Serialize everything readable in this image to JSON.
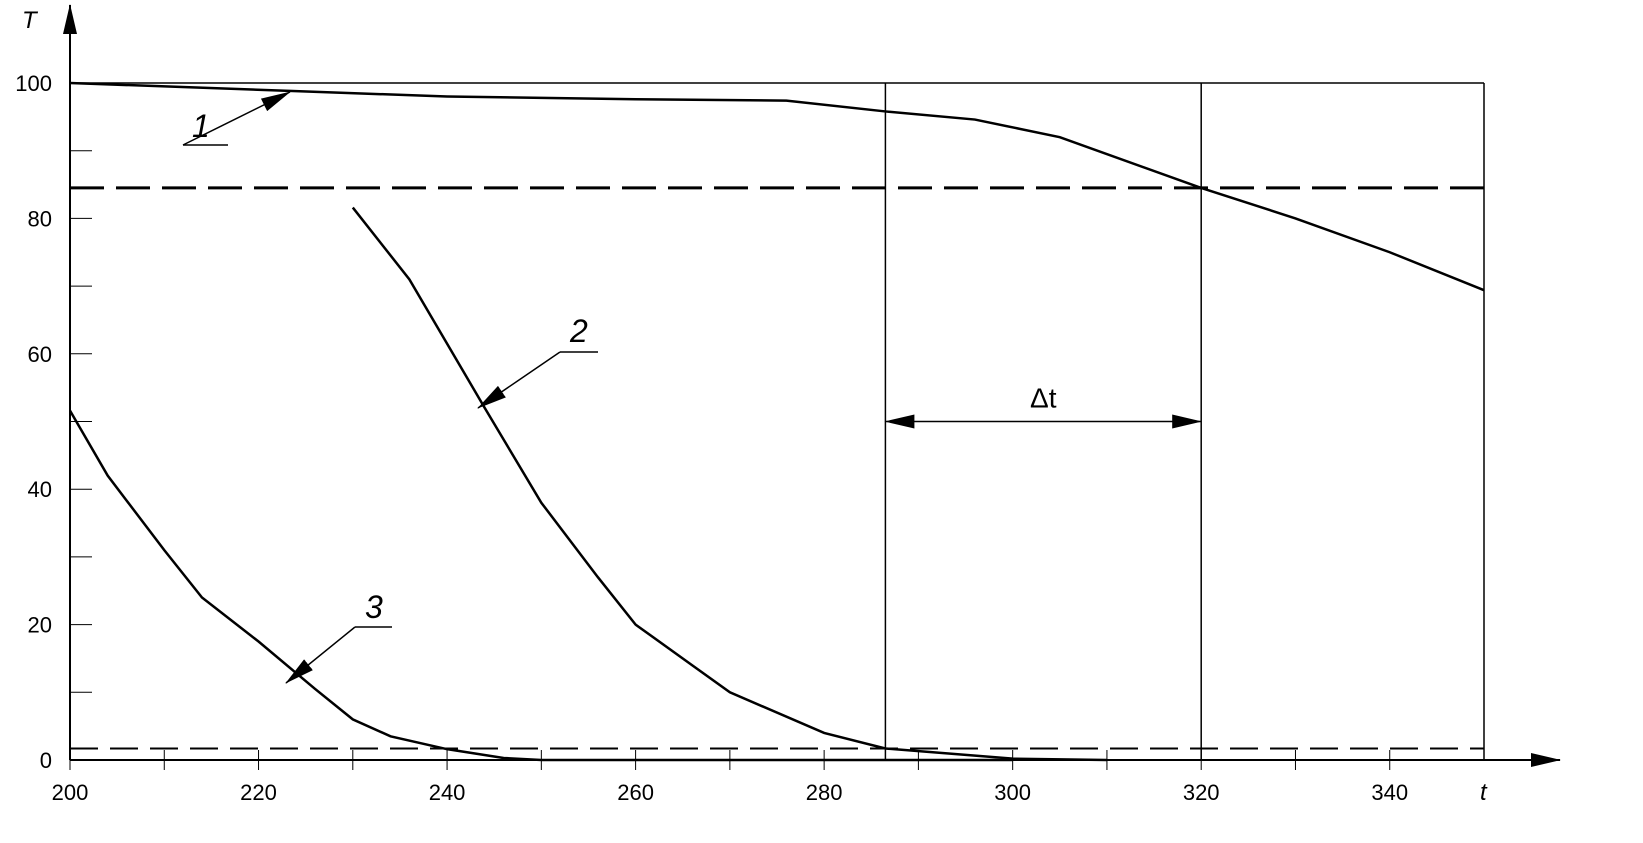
{
  "chart_data": {
    "type": "line",
    "x_label": "t",
    "y_label": "T",
    "xlim": [
      200,
      350
    ],
    "ylim": [
      0,
      100
    ],
    "xticks": [
      200,
      220,
      240,
      260,
      280,
      300,
      320,
      340
    ],
    "yticks": [
      0,
      20,
      40,
      60,
      80,
      100
    ],
    "xminor_ticks": [
      210,
      230,
      250,
      270,
      290,
      310,
      330
    ],
    "yminor_ticks": [
      10,
      30,
      50,
      70,
      90
    ],
    "hlines": [
      84.5,
      1.7
    ],
    "vlines": [
      286.5,
      320
    ],
    "interval_label": "Δt",
    "interval_y": 50,
    "series": [
      {
        "name": "1",
        "color": "#000000",
        "x": [
          200,
          224,
          240,
          260,
          276,
          286.5,
          296,
          305,
          320,
          330,
          340,
          350
        ],
        "values": [
          100,
          98.8,
          98,
          97.6,
          97.4,
          95.8,
          94.6,
          92,
          84.5,
          80,
          75,
          69.4
        ]
      },
      {
        "name": "2",
        "color": "#000000",
        "x": [
          230,
          236,
          244,
          250,
          256,
          260,
          266,
          270,
          280,
          286.5,
          300,
          310
        ],
        "values": [
          81.6,
          71,
          52,
          38,
          27,
          20,
          14,
          10,
          4,
          1.7,
          0.2,
          0
        ]
      },
      {
        "name": "3",
        "color": "#000000",
        "x": [
          200,
          204,
          210,
          214,
          220,
          226,
          230,
          234,
          240,
          246,
          250,
          300
        ],
        "values": [
          51.6,
          42,
          31,
          24,
          17.5,
          10.5,
          6,
          3.5,
          1.6,
          0.3,
          0,
          0
        ]
      }
    ]
  }
}
